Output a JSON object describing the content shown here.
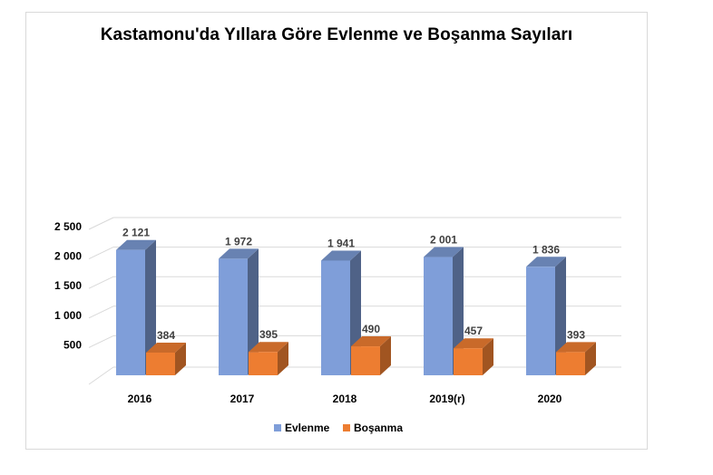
{
  "chart_data": {
    "type": "bar",
    "title": "Kastamonu'da Yıllara Göre Evlenme ve Boşanma Sayıları",
    "categories": [
      "2016",
      "2017",
      "2018",
      "2019(r)",
      "2020"
    ],
    "series": [
      {
        "name": "Evlenme",
        "values": [
          2121,
          1972,
          1941,
          2001,
          1836
        ],
        "labels": [
          "2 121",
          "1 972",
          "1 941",
          "2 001",
          "1 836"
        ],
        "color": "#7f9ed9"
      },
      {
        "name": "Boşanma",
        "values": [
          384,
          395,
          490,
          457,
          393
        ],
        "labels": [
          "384",
          "395",
          "490",
          "457",
          "393"
        ],
        "color": "#ed7d31"
      }
    ],
    "yticks": [
      500,
      1000,
      1500,
      2000,
      2500
    ],
    "ytick_labels": [
      "500",
      "1 000",
      "1 500",
      "2 000",
      "2 500"
    ],
    "ylim": [
      0,
      2500
    ],
    "xlabel": "",
    "ylabel": "",
    "grid": true,
    "legend": "bottom",
    "style": "3d-column"
  }
}
